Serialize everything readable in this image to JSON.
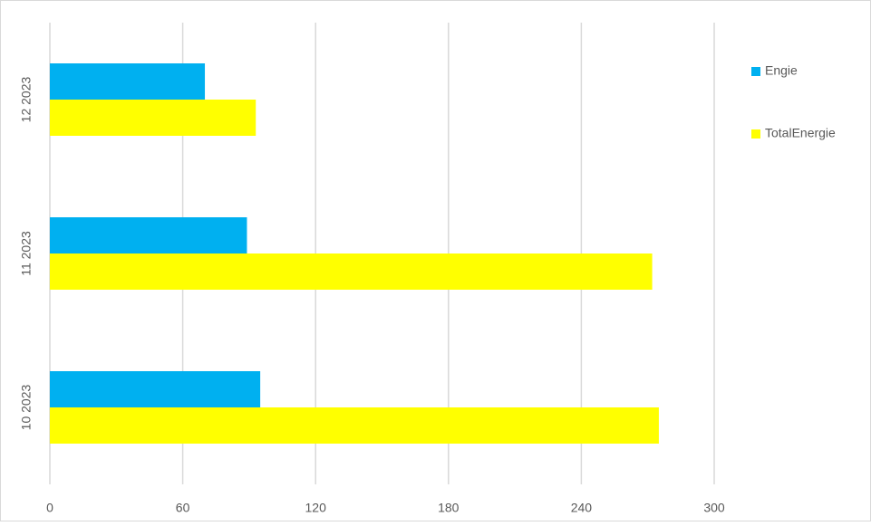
{
  "chart_data": {
    "type": "hbar",
    "categories": [
      "10 2023",
      "11 2023",
      "12 2023"
    ],
    "series": [
      {
        "name": "Engie",
        "color": "#00b0f0",
        "values": [
          95,
          89,
          70
        ]
      },
      {
        "name": "TotalEnergie",
        "color": "#ffff00",
        "values": [
          275,
          272,
          93
        ]
      }
    ],
    "xlim": [
      0,
      300
    ],
    "xticks": [
      0,
      60,
      120,
      180,
      240,
      300
    ],
    "grid": true,
    "legend": "right"
  }
}
